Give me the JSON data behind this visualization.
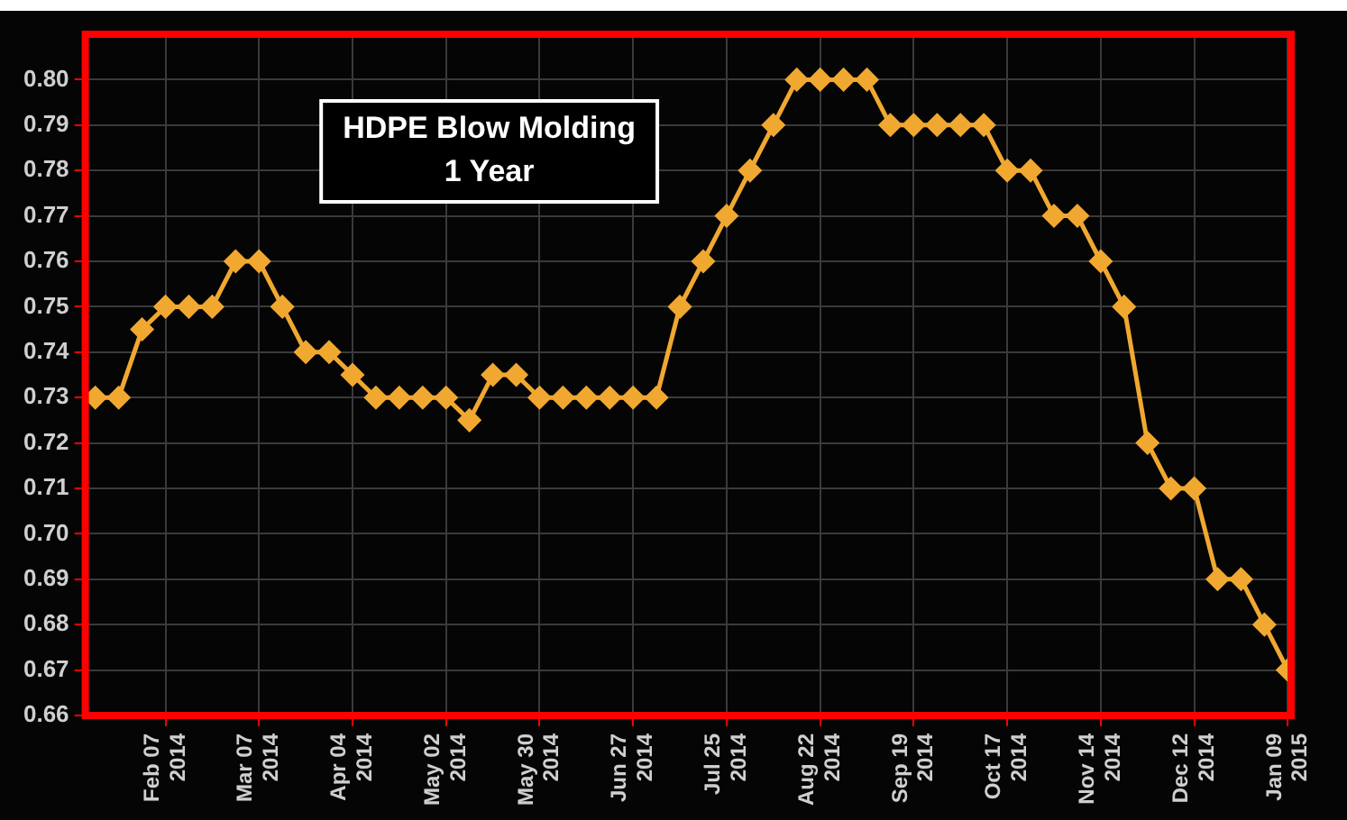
{
  "chart_data": {
    "type": "line",
    "title": "HDPE Blow Molding\n1 Year",
    "x": [
      "2014-01-17",
      "2014-01-24",
      "2014-01-31",
      "2014-02-07",
      "2014-02-14",
      "2014-02-21",
      "2014-02-28",
      "2014-03-07",
      "2014-03-14",
      "2014-03-21",
      "2014-03-28",
      "2014-04-04",
      "2014-04-11",
      "2014-04-18",
      "2014-04-25",
      "2014-05-02",
      "2014-05-09",
      "2014-05-16",
      "2014-05-23",
      "2014-05-30",
      "2014-06-06",
      "2014-06-13",
      "2014-06-20",
      "2014-06-27",
      "2014-07-04",
      "2014-07-11",
      "2014-07-18",
      "2014-07-25",
      "2014-08-01",
      "2014-08-08",
      "2014-08-15",
      "2014-08-22",
      "2014-08-29",
      "2014-09-05",
      "2014-09-12",
      "2014-09-19",
      "2014-09-26",
      "2014-10-03",
      "2014-10-10",
      "2014-10-17",
      "2014-10-24",
      "2014-10-31",
      "2014-11-07",
      "2014-11-14",
      "2014-11-21",
      "2014-11-28",
      "2014-12-05",
      "2014-12-12",
      "2014-12-19",
      "2014-12-26",
      "2015-01-02",
      "2015-01-09"
    ],
    "series": [
      {
        "color": "#f0a830",
        "values": [
          0.73,
          0.73,
          0.745,
          0.75,
          0.75,
          0.75,
          0.76,
          0.76,
          0.75,
          0.74,
          0.74,
          0.735,
          0.73,
          0.73,
          0.73,
          0.73,
          0.725,
          0.735,
          0.735,
          0.73,
          0.73,
          0.73,
          0.73,
          0.73,
          0.73,
          0.75,
          0.76,
          0.77,
          0.78,
          0.79,
          0.8,
          0.8,
          0.8,
          0.8,
          0.79,
          0.79,
          0.79,
          0.79,
          0.79,
          0.78,
          0.78,
          0.77,
          0.77,
          0.76,
          0.75,
          0.72,
          0.71,
          0.71,
          0.69,
          0.69,
          0.68,
          0.67
        ]
      }
    ],
    "xlim": [
      "2014-01-14",
      "2015-01-10"
    ],
    "xticks": [
      {
        "value": "2014-02-07",
        "label": "Feb 07\n2014"
      },
      {
        "value": "2014-03-07",
        "label": "Mar 07\n2014"
      },
      {
        "value": "2014-04-04",
        "label": "Apr 04\n2014"
      },
      {
        "value": "2014-05-02",
        "label": "May 02\n2014"
      },
      {
        "value": "2014-05-30",
        "label": "May 30\n2014"
      },
      {
        "value": "2014-06-27",
        "label": "Jun 27\n2014"
      },
      {
        "value": "2014-07-25",
        "label": "Jul 25\n2014"
      },
      {
        "value": "2014-08-22",
        "label": "Aug 22\n2014"
      },
      {
        "value": "2014-09-19",
        "label": "Sep 19\n2014"
      },
      {
        "value": "2014-10-17",
        "label": "Oct 17\n2014"
      },
      {
        "value": "2014-11-14",
        "label": "Nov 14\n2014"
      },
      {
        "value": "2014-12-12",
        "label": "Dec 12\n2014"
      },
      {
        "value": "2015-01-09",
        "label": "Jan 09\n2015"
      }
    ],
    "ylim": [
      0.66,
      0.81
    ],
    "yticks": [
      {
        "value": 0.66,
        "label": "0.66"
      },
      {
        "value": 0.67,
        "label": "0.67"
      },
      {
        "value": 0.68,
        "label": "0.68"
      },
      {
        "value": 0.69,
        "label": "0.69"
      },
      {
        "value": 0.7,
        "label": "0.70"
      },
      {
        "value": 0.71,
        "label": "0.71"
      },
      {
        "value": 0.72,
        "label": "0.72"
      },
      {
        "value": 0.73,
        "label": "0.73"
      },
      {
        "value": 0.74,
        "label": "0.74"
      },
      {
        "value": 0.75,
        "label": "0.75"
      },
      {
        "value": 0.76,
        "label": "0.76"
      },
      {
        "value": 0.77,
        "label": "0.77"
      },
      {
        "value": 0.78,
        "label": "0.78"
      },
      {
        "value": 0.79,
        "label": "0.79"
      },
      {
        "value": 0.8,
        "label": "0.80"
      }
    ],
    "grid": true,
    "marker": "diamond",
    "line_style": "solid",
    "legend": false
  }
}
